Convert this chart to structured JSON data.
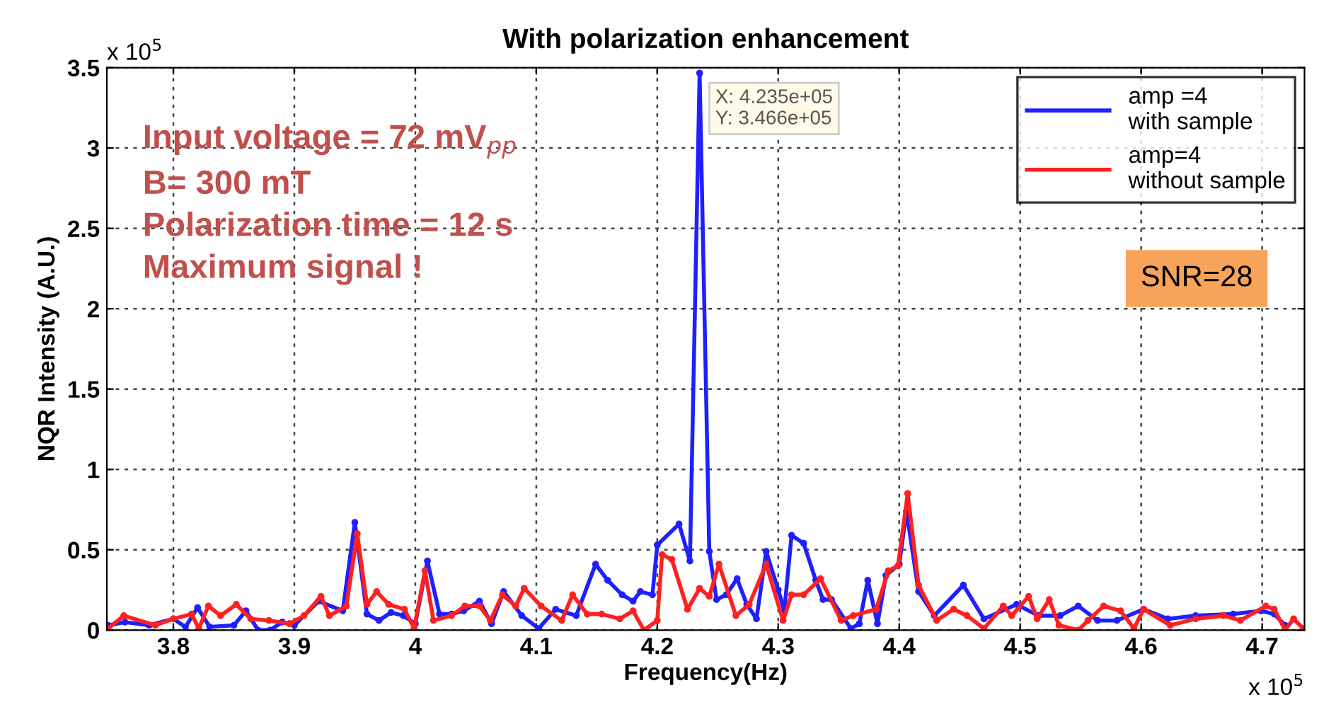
{
  "chart_data": {
    "type": "line",
    "title": "With polarization enhancement",
    "xlabel": "Frequency(Hz)",
    "ylabel": "NQR Intensity (A.U.)",
    "xlim": [
      3.745,
      4.735
    ],
    "xticks": [
      3.8,
      3.9,
      4,
      4.1,
      4.2,
      4.3,
      4.4,
      4.5,
      4.6,
      4.7
    ],
    "ylim": [
      0,
      3.5
    ],
    "yticks": [
      0,
      0.5,
      1,
      1.5,
      2,
      2.5,
      3,
      3.5
    ],
    "grid": true,
    "legend": "top right",
    "marker": "circle",
    "line_style": "solid",
    "series": [
      {
        "name": "amp =4\nwith sample",
        "color": "#1f1fff",
        "x": [
          3.746,
          3.76,
          3.78,
          3.8,
          3.81,
          3.82,
          3.83,
          3.85,
          3.86,
          3.87,
          3.88,
          3.89,
          3.9,
          3.92,
          3.94,
          3.95,
          3.96,
          3.97,
          3.98,
          3.99,
          4.0,
          4.01,
          4.02,
          4.03,
          4.04,
          4.053,
          4.063,
          4.073,
          4.088,
          4.102,
          4.116,
          4.133,
          4.149,
          4.159,
          4.171,
          4.18,
          4.186,
          4.196,
          4.2,
          4.218,
          4.227,
          4.235,
          4.243,
          4.249,
          4.257,
          4.266,
          4.274,
          4.282,
          4.29,
          4.3,
          4.305,
          4.311,
          4.321,
          4.331,
          4.337,
          4.344,
          4.36,
          4.367,
          4.374,
          4.382,
          4.389,
          4.4,
          4.406,
          4.416,
          4.429,
          4.453,
          4.47,
          4.497,
          4.515,
          4.533,
          4.548,
          4.564,
          4.58,
          4.602,
          4.622,
          4.645,
          4.676,
          4.699,
          4.71,
          4.719
        ],
        "values": [
          0.03,
          0.05,
          0.03,
          0.07,
          0.02,
          0.14,
          0.02,
          0.03,
          0.12,
          0.0,
          0.0,
          0.05,
          0.03,
          0.18,
          0.12,
          0.67,
          0.1,
          0.06,
          0.11,
          0.09,
          0.04,
          0.43,
          0.1,
          0.1,
          0.12,
          0.18,
          0.04,
          0.24,
          0.09,
          0.01,
          0.13,
          0.09,
          0.41,
          0.31,
          0.22,
          0.18,
          0.24,
          0.22,
          0.53,
          0.66,
          0.43,
          3.466,
          0.49,
          0.19,
          0.22,
          0.32,
          0.16,
          0.07,
          0.49,
          0.25,
          0.12,
          0.59,
          0.54,
          0.31,
          0.19,
          0.19,
          0.01,
          0.04,
          0.31,
          0.04,
          0.34,
          0.41,
          0.74,
          0.24,
          0.09,
          0.28,
          0.07,
          0.16,
          0.09,
          0.09,
          0.15,
          0.06,
          0.06,
          0.13,
          0.07,
          0.09,
          0.1,
          0.12,
          0.1,
          0.03
        ]
      },
      {
        "name": "amp=4\nwithout sample",
        "color": "#ff2020",
        "x": [
          3.746,
          3.759,
          3.785,
          3.8,
          3.815,
          3.821,
          3.829,
          3.839,
          3.852,
          3.864,
          3.879,
          3.896,
          3.908,
          3.922,
          3.929,
          3.943,
          3.952,
          3.96,
          3.968,
          3.978,
          3.991,
          3.999,
          4.008,
          4.015,
          4.03,
          4.041,
          4.053,
          4.062,
          4.072,
          4.083,
          4.09,
          4.104,
          4.121,
          4.13,
          4.142,
          4.154,
          4.169,
          4.18,
          4.189,
          4.2,
          4.204,
          4.212,
          4.225,
          4.235,
          4.243,
          4.251,
          4.265,
          4.276,
          4.29,
          4.304,
          4.311,
          4.321,
          4.335,
          4.352,
          4.362,
          4.381,
          4.391,
          4.399,
          4.407,
          4.416,
          4.431,
          4.445,
          4.456,
          4.47,
          4.486,
          4.493,
          4.507,
          4.514,
          4.524,
          4.532,
          4.548,
          4.556,
          4.569,
          4.583,
          4.594,
          4.602,
          4.624,
          4.645,
          4.668,
          4.682,
          4.703,
          4.71,
          4.719,
          4.726,
          4.734
        ],
        "values": [
          0.01,
          0.09,
          0.03,
          0.07,
          0.1,
          0.01,
          0.15,
          0.09,
          0.16,
          0.07,
          0.06,
          0.04,
          0.09,
          0.21,
          0.09,
          0.15,
          0.6,
          0.16,
          0.24,
          0.16,
          0.13,
          0.01,
          0.37,
          0.06,
          0.09,
          0.15,
          0.15,
          0.06,
          0.22,
          0.15,
          0.26,
          0.15,
          0.06,
          0.22,
          0.1,
          0.1,
          0.07,
          0.12,
          0.0,
          0.06,
          0.47,
          0.44,
          0.13,
          0.26,
          0.21,
          0.41,
          0.09,
          0.16,
          0.41,
          0.06,
          0.22,
          0.22,
          0.32,
          0.06,
          0.09,
          0.13,
          0.37,
          0.4,
          0.85,
          0.28,
          0.06,
          0.13,
          0.09,
          0.01,
          0.15,
          0.09,
          0.21,
          0.07,
          0.19,
          0.03,
          0.0,
          0.06,
          0.15,
          0.12,
          0.01,
          0.13,
          0.03,
          0.07,
          0.09,
          0.06,
          0.15,
          0.13,
          0.0,
          0.07,
          0.01
        ]
      }
    ],
    "annotations": [
      "x 10$^{5}$",
      "x 10$^{5}$",
      "Input voltage = 72 mV$_{pp}$\nB= 300 mT\nPolarization time = 12 s\nMaximum signal !",
      "SNR=28",
      {
        "text": "X: 4.235e+05\nY: 3.466e+05",
        "x": 4.235,
        "y": 3.466
      }
    ]
  }
}
